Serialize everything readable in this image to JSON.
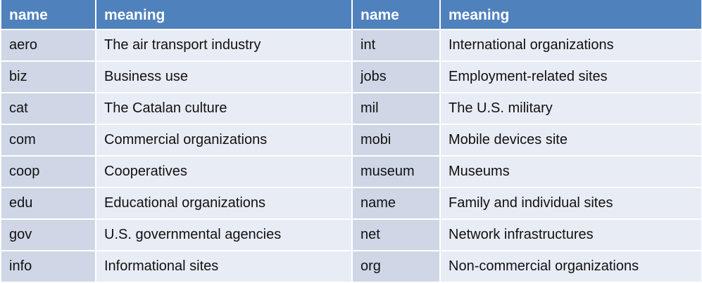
{
  "header": {
    "col1": "name",
    "col2": "meaning",
    "col3": "name",
    "col4": "meaning"
  },
  "rows": [
    {
      "name1": "aero",
      "meaning1": "The air transport industry",
      "name2": "int",
      "meaning2": "International organizations"
    },
    {
      "name1": "biz",
      "meaning1": "Business use",
      "name2": "jobs",
      "meaning2": "Employment-related sites"
    },
    {
      "name1": "cat",
      "meaning1": "The Catalan culture",
      "name2": "mil",
      "meaning2": "The U.S. military"
    },
    {
      "name1": "com",
      "meaning1": "Commercial organizations",
      "name2": "mobi",
      "meaning2": "Mobile devices site"
    },
    {
      "name1": "coop",
      "meaning1": "Cooperatives",
      "name2": "museum",
      "meaning2": "Museums"
    },
    {
      "name1": "edu",
      "meaning1": "Educational organizations",
      "name2": "name",
      "meaning2": "Family and individual sites"
    },
    {
      "name1": "gov",
      "meaning1": "U.S. governmental agencies",
      "name2": "net",
      "meaning2": "Network infrastructures"
    },
    {
      "name1": "info",
      "meaning1": "Informational sites",
      "name2": "org",
      "meaning2": "Non-commercial organizations"
    }
  ]
}
